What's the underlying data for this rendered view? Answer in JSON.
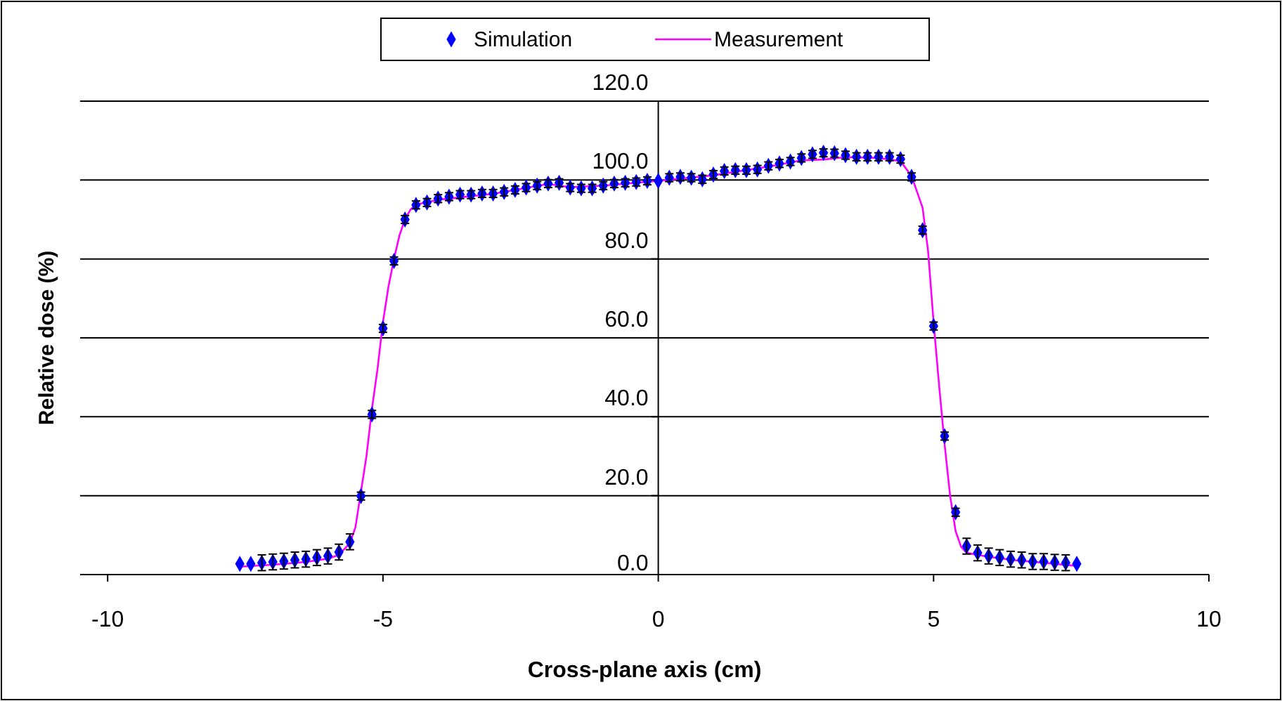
{
  "chart_data": {
    "type": "scatter",
    "xlabel": "Cross-plane axis (cm)",
    "ylabel": "Relative dose (%)",
    "xlim": [
      -10.5,
      10
    ],
    "xticks": [
      -10,
      -5,
      0,
      5,
      10
    ],
    "ylim": [
      0,
      120
    ],
    "yticks": [
      {
        "value": 0,
        "label": "0.0"
      },
      {
        "value": 20,
        "label": "20.0"
      },
      {
        "value": 40,
        "label": "40.0"
      },
      {
        "value": 60,
        "label": "60.0"
      },
      {
        "value": 80,
        "label": "80.0"
      },
      {
        "value": 100,
        "label": "100.0"
      },
      {
        "value": 120,
        "label": "120.0"
      }
    ],
    "grid": "y",
    "legend": "top",
    "marker": "diamond",
    "series": [
      {
        "name": "Simulation",
        "color": "#0000ff",
        "x": [
          -7.6,
          -7.4,
          -7.2,
          -7.0,
          -6.8,
          -6.6,
          -6.4,
          -6.2,
          -6.0,
          -5.8,
          -5.6,
          -5.4,
          -5.2,
          -5.0,
          -4.8,
          -4.6,
          -4.4,
          -4.2,
          -4.0,
          -3.8,
          -3.6,
          -3.4,
          -3.2,
          -3.0,
          -2.8,
          -2.6,
          -2.4,
          -2.2,
          -2.0,
          -1.8,
          -1.6,
          -1.4,
          -1.2,
          -1.0,
          -0.8,
          -0.6,
          -0.4,
          -0.2,
          0.0,
          0.2,
          0.4,
          0.6,
          0.8,
          1.0,
          1.2,
          1.4,
          1.6,
          1.8,
          2.0,
          2.2,
          2.4,
          2.6,
          2.8,
          3.0,
          3.2,
          3.4,
          3.6,
          3.8,
          4.0,
          4.2,
          4.4,
          4.6,
          4.8,
          5.0,
          5.2,
          5.4,
          5.6,
          5.8,
          6.0,
          6.2,
          6.4,
          6.6,
          6.8,
          7.0,
          7.2,
          7.4,
          7.6
        ],
        "values": [
          2.7,
          2.7,
          3.0,
          3.2,
          3.4,
          3.7,
          3.9,
          4.3,
          4.7,
          5.7,
          8.3,
          19.9,
          40.6,
          62.4,
          79.5,
          90.0,
          93.7,
          94.3,
          95.3,
          95.8,
          96.3,
          96.3,
          96.6,
          96.6,
          97.0,
          97.5,
          98.1,
          98.6,
          99.1,
          99.3,
          98.1,
          97.9,
          97.9,
          98.6,
          99.1,
          99.3,
          99.5,
          99.8,
          99.8,
          100.6,
          100.8,
          100.6,
          100.2,
          101.4,
          102.3,
          102.5,
          102.5,
          102.7,
          103.6,
          104.2,
          104.7,
          105.6,
          106.5,
          106.9,
          106.8,
          106.3,
          105.9,
          105.9,
          105.9,
          105.9,
          105.3,
          100.8,
          87.3,
          63.0,
          35.1,
          15.8,
          7.2,
          5.5,
          4.7,
          4.3,
          3.9,
          3.7,
          3.3,
          3.3,
          3.1,
          3.0,
          2.7
        ],
        "errors": [
          null,
          null,
          2.0,
          2.0,
          2.0,
          2.0,
          2.0,
          2.0,
          2.0,
          2.0,
          2.0,
          1,
          1,
          1,
          1,
          1,
          1,
          1,
          1,
          1,
          1,
          1,
          1,
          1,
          1,
          1,
          1,
          1,
          1,
          1,
          1,
          1,
          1,
          1,
          1,
          1,
          1,
          1,
          null,
          1,
          1,
          1,
          1,
          1,
          1,
          1,
          1,
          1,
          1,
          1,
          1,
          1,
          1,
          1,
          1,
          1,
          1,
          1,
          1,
          1,
          1,
          1,
          1,
          1,
          1,
          1,
          2.0,
          2.0,
          2.0,
          2.0,
          2.0,
          2.0,
          2.0,
          2.0,
          2.0,
          2.0,
          null
        ]
      },
      {
        "name": "Measurement",
        "type": "line",
        "color": "#ff00ff",
        "marker": "none",
        "line_style": "solid",
        "x": [
          -7.6,
          -7.0,
          -6.4,
          -6.0,
          -5.8,
          -5.6,
          -5.5,
          -5.4,
          -5.3,
          -5.2,
          -5.1,
          -5.0,
          -4.9,
          -4.8,
          -4.7,
          -4.6,
          -4.5,
          -4.4,
          -4.0,
          -3.0,
          -2.0,
          -1.6,
          -1.0,
          0.0,
          1.0,
          2.0,
          2.6,
          3.0,
          3.4,
          4.0,
          4.4,
          4.6,
          4.8,
          4.9,
          5.0,
          5.1,
          5.2,
          5.3,
          5.4,
          5.5,
          5.6,
          6.0,
          6.5,
          7.0,
          7.6
        ],
        "values": [
          2.0,
          2.5,
          3.2,
          4.0,
          5.0,
          8.0,
          12.0,
          21.0,
          30.0,
          42.0,
          52.0,
          64.0,
          73.0,
          80.0,
          86.0,
          90.0,
          92.5,
          93.8,
          95.0,
          96.5,
          99.0,
          98.2,
          98.6,
          99.8,
          101.2,
          103.4,
          105.0,
          105.2,
          105.8,
          105.6,
          104.8,
          101.0,
          93.0,
          82.0,
          64.0,
          48.0,
          33.0,
          20.0,
          11.0,
          7.0,
          5.5,
          4.5,
          3.6,
          3.0,
          2.2
        ]
      }
    ]
  }
}
